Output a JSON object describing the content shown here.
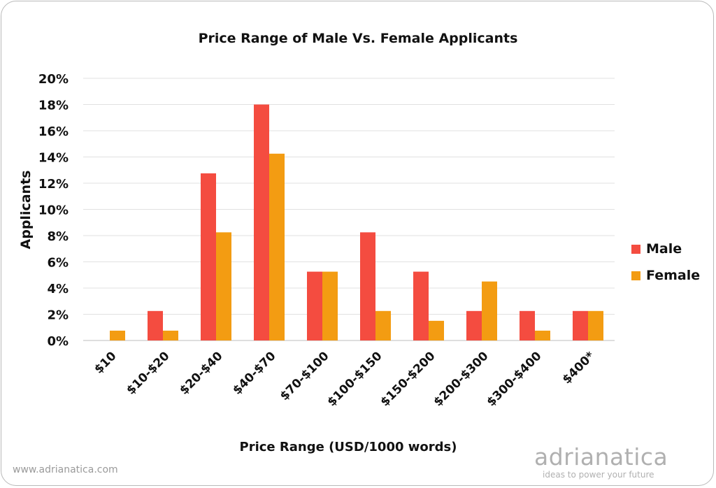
{
  "footer": {
    "site": "www.adrianatica.com",
    "brand_name": "adrianatica",
    "brand_tagline": "ideas to power your future"
  },
  "chart_data": {
    "type": "bar",
    "title": "Price Range of Male Vs. Female Applicants",
    "xlabel": "Price Range (USD/1000 words)",
    "ylabel": "Applicants",
    "categories": [
      "$10",
      "$10-$20",
      "$20-$40",
      "$40-$70",
      "$70-$100",
      "$100-$150",
      "$150-$200",
      "$200-$300",
      "$300-$400",
      "$400*"
    ],
    "series": [
      {
        "name": "Male",
        "color": "#f44c40",
        "values": [
          0,
          2.25,
          12.75,
          18.0,
          5.25,
          8.25,
          5.25,
          2.25,
          2.25,
          2.25
        ]
      },
      {
        "name": "Female",
        "color": "#f39c12",
        "values": [
          0.75,
          0.75,
          8.25,
          14.25,
          5.25,
          2.25,
          1.5,
          4.5,
          0.75,
          2.25
        ]
      }
    ],
    "ylim": [
      0,
      20
    ],
    "yticks": [
      "0%",
      "2%",
      "4%",
      "6%",
      "8%",
      "10%",
      "12%",
      "14%",
      "16%",
      "18%",
      "20%"
    ],
    "grid": true,
    "legend_position": "right"
  }
}
